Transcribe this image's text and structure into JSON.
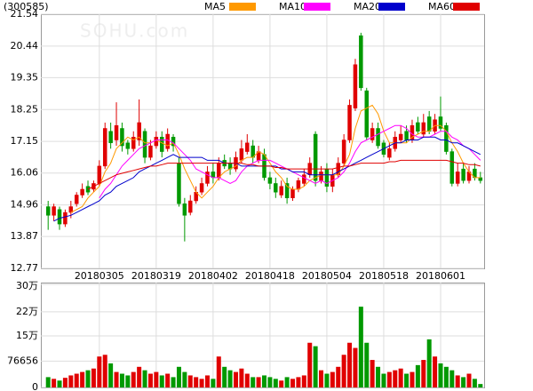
{
  "chart_data": {
    "type": "candlestick",
    "code": "(300585)",
    "watermark": "SOHU.com",
    "categories": [
      null,
      null,
      null,
      null,
      null,
      null,
      null,
      null,
      null,
      "20180305",
      null,
      null,
      null,
      null,
      null,
      null,
      null,
      null,
      null,
      "20180319",
      null,
      null,
      null,
      null,
      null,
      null,
      null,
      null,
      null,
      "20180402",
      null,
      null,
      null,
      null,
      null,
      null,
      null,
      null,
      null,
      "20180418",
      null,
      null,
      null,
      null,
      null,
      null,
      null,
      null,
      null,
      "20180504",
      null,
      null,
      null,
      null,
      null,
      null,
      null,
      null,
      null,
      "20180518",
      null,
      null,
      null,
      null,
      null,
      null,
      null,
      null,
      null,
      "20180601",
      null,
      null,
      null,
      null,
      null,
      null,
      null
    ],
    "open": [
      14.9,
      14.6,
      14.8,
      14.3,
      14.7,
      15.0,
      15.3,
      15.6,
      15.5,
      15.7,
      16.3,
      17.5,
      17.2,
      17.6,
      17.1,
      16.9,
      17.2,
      17.5,
      16.6,
      17.0,
      17.3,
      16.9,
      17.3,
      16.4,
      15.0,
      14.7,
      15.1,
      15.4,
      15.7,
      16.1,
      15.9,
      16.5,
      16.4,
      16.2,
      16.5,
      16.8,
      17.0,
      16.5,
      16.7,
      15.9,
      15.7,
      15.3,
      15.7,
      15.2,
      15.5,
      15.7,
      16.0,
      17.4,
      15.8,
      16.2,
      15.6,
      16.0,
      16.4,
      17.2,
      18.3,
      20.8,
      18.9,
      17.2,
      17.6,
      17.1,
      16.6,
      16.9,
      17.2,
      17.5,
      17.2,
      17.8,
      17.4,
      18.0,
      17.5,
      18.0,
      17.7,
      16.8,
      15.7,
      16.2,
      15.8,
      16.2,
      15.9
    ],
    "high": [
      15.1,
      15.0,
      14.9,
      14.8,
      15.1,
      15.4,
      15.7,
      15.8,
      15.8,
      16.5,
      17.8,
      17.8,
      18.5,
      17.8,
      17.2,
      17.5,
      18.6,
      17.6,
      17.2,
      17.5,
      17.5,
      17.6,
      17.4,
      16.6,
      15.2,
      15.3,
      15.6,
      15.9,
      16.3,
      16.4,
      16.6,
      16.7,
      16.6,
      16.8,
      17.2,
      17.4,
      17.2,
      17.0,
      16.9,
      16.1,
      15.9,
      15.8,
      15.9,
      15.6,
      15.9,
      16.2,
      16.6,
      17.5,
      16.3,
      16.4,
      16.2,
      16.6,
      17.4,
      18.6,
      20.0,
      20.9,
      19.0,
      17.8,
      17.8,
      17.2,
      17.1,
      17.5,
      17.7,
      17.7,
      17.9,
      18.0,
      18.1,
      18.2,
      18.1,
      18.7,
      17.8,
      16.9,
      16.4,
      16.4,
      16.3,
      16.4,
      16.1
    ],
    "low": [
      14.1,
      14.4,
      14.1,
      14.2,
      14.5,
      14.9,
      15.2,
      15.3,
      15.4,
      15.6,
      16.2,
      16.9,
      17.0,
      16.8,
      16.7,
      16.8,
      17.0,
      16.4,
      16.5,
      16.9,
      16.6,
      16.8,
      16.8,
      14.9,
      13.7,
      14.6,
      15.0,
      15.3,
      15.6,
      15.7,
      15.8,
      16.2,
      16.0,
      16.1,
      16.4,
      16.7,
      16.4,
      16.4,
      15.8,
      15.5,
      15.2,
      15.2,
      15.0,
      15.1,
      15.4,
      15.6,
      15.9,
      15.6,
      15.7,
      15.4,
      15.4,
      15.9,
      16.3,
      17.1,
      18.2,
      18.9,
      17.2,
      17.1,
      16.9,
      16.6,
      16.5,
      16.8,
      17.1,
      17.1,
      17.1,
      17.4,
      17.3,
      17.4,
      17.4,
      17.5,
      16.7,
      15.6,
      15.6,
      15.7,
      15.7,
      15.8,
      15.7
    ],
    "close": [
      14.6,
      14.9,
      14.3,
      14.7,
      14.9,
      15.3,
      15.5,
      15.4,
      15.7,
      16.3,
      17.6,
      17.1,
      17.7,
      17.0,
      16.9,
      17.3,
      17.8,
      16.6,
      17.0,
      17.3,
      16.8,
      17.4,
      17.0,
      15.0,
      14.6,
      15.1,
      15.4,
      15.7,
      16.1,
      15.9,
      16.4,
      16.3,
      16.2,
      16.6,
      16.9,
      17.1,
      16.6,
      16.8,
      15.9,
      15.7,
      15.4,
      15.6,
      15.2,
      15.5,
      15.8,
      16.0,
      16.4,
      15.8,
      16.1,
      15.6,
      16.0,
      16.4,
      17.2,
      18.4,
      19.8,
      19.0,
      17.3,
      17.6,
      17.0,
      16.7,
      16.9,
      17.3,
      17.4,
      17.2,
      17.7,
      17.5,
      17.8,
      17.5,
      17.9,
      17.6,
      16.8,
      15.7,
      16.1,
      15.8,
      16.1,
      15.9,
      15.8
    ],
    "up_color": "#e00000",
    "down_color": "#009900",
    "ylim": [
      12.77,
      21.54
    ],
    "yticks": [
      12.77,
      13.87,
      14.96,
      16.06,
      17.15,
      18.25,
      19.35,
      20.44,
      21.54
    ],
    "grid": true,
    "series": [
      {
        "name": "MA5",
        "color": "#ff9900",
        "values": [
          null,
          null,
          null,
          null,
          14.7,
          14.8,
          14.9,
          15.2,
          15.4,
          15.6,
          16.1,
          16.4,
          16.9,
          17.1,
          17.3,
          17.2,
          17.3,
          17.1,
          17.1,
          17.2,
          17.1,
          17.0,
          17.1,
          16.7,
          16.2,
          15.8,
          15.4,
          15.2,
          15.4,
          15.6,
          15.9,
          16.1,
          16.2,
          16.3,
          16.5,
          16.6,
          16.6,
          16.8,
          16.7,
          16.4,
          16.1,
          15.9,
          15.6,
          15.5,
          15.5,
          15.6,
          15.8,
          15.9,
          16.0,
          16.0,
          16.0,
          16.0,
          16.3,
          16.7,
          17.6,
          18.2,
          18.3,
          18.4,
          18.1,
          17.5,
          17.1,
          17.1,
          17.1,
          17.1,
          17.3,
          17.4,
          17.5,
          17.5,
          17.7,
          17.7,
          17.5,
          17.1,
          16.8,
          16.4,
          16.1,
          15.9,
          15.9
        ]
      },
      {
        "name": "MA10",
        "color": "#ff00ff",
        "values": [
          null,
          null,
          null,
          null,
          null,
          null,
          null,
          null,
          null,
          15.2,
          15.5,
          15.7,
          16.0,
          16.3,
          16.5,
          16.7,
          16.9,
          17.0,
          17.1,
          17.2,
          17.2,
          17.2,
          17.1,
          16.9,
          16.7,
          16.5,
          16.2,
          16.1,
          16.0,
          15.9,
          15.9,
          15.8,
          15.7,
          15.8,
          16.1,
          16.3,
          16.4,
          16.5,
          16.5,
          16.5,
          16.4,
          16.3,
          16.2,
          16.1,
          16.0,
          15.9,
          15.8,
          15.7,
          15.8,
          15.7,
          15.8,
          15.9,
          16.1,
          16.4,
          16.8,
          17.1,
          17.2,
          17.3,
          17.4,
          17.5,
          17.6,
          17.7,
          17.7,
          17.6,
          17.4,
          17.3,
          17.3,
          17.3,
          17.4,
          17.5,
          17.5,
          17.3,
          17.2,
          17.0,
          16.9,
          16.7,
          16.5
        ]
      },
      {
        "name": "MA20",
        "color": "#0000cc",
        "values": [
          null,
          14.4,
          14.5,
          14.55,
          14.6,
          14.7,
          14.8,
          14.9,
          15.0,
          15.1,
          15.3,
          15.4,
          15.6,
          15.7,
          15.8,
          15.9,
          16.1,
          16.2,
          16.3,
          16.4,
          16.5,
          16.6,
          16.7,
          16.6,
          16.6,
          16.6,
          16.6,
          16.6,
          16.5,
          16.5,
          16.5,
          16.4,
          16.4,
          16.4,
          16.3,
          16.3,
          16.3,
          16.3,
          16.3,
          16.3,
          16.3,
          16.2,
          16.2,
          16.1,
          16.1,
          16.1,
          16.0,
          16.0,
          16.0,
          16.0,
          16.0,
          16.1,
          16.2,
          16.3,
          16.4,
          16.5,
          16.6,
          16.7,
          16.8,
          16.9,
          17.0,
          17.1,
          17.1,
          17.2,
          17.2,
          17.2,
          17.3,
          17.3,
          17.3,
          17.2,
          17.2,
          17.1,
          17.1,
          17.0,
          16.9,
          16.8,
          16.7
        ]
      },
      {
        "name": "MA60",
        "color": "#e00000",
        "values": [
          null,
          null,
          null,
          null,
          null,
          null,
          null,
          15.5,
          15.6,
          15.7,
          15.8,
          15.9,
          16.0,
          16.05,
          16.1,
          16.15,
          16.2,
          16.25,
          16.3,
          16.3,
          16.35,
          16.4,
          16.4,
          16.4,
          16.4,
          16.4,
          16.4,
          16.4,
          16.4,
          16.4,
          16.4,
          16.4,
          16.4,
          16.4,
          16.4,
          16.35,
          16.35,
          16.3,
          16.3,
          16.3,
          16.25,
          16.25,
          16.2,
          16.2,
          16.2,
          16.2,
          16.2,
          16.2,
          16.2,
          16.2,
          16.2,
          16.25,
          16.3,
          16.3,
          16.35,
          16.4,
          16.4,
          16.4,
          16.4,
          16.4,
          16.45,
          16.45,
          16.5,
          16.5,
          16.5,
          16.5,
          16.5,
          16.5,
          16.5,
          16.5,
          16.5,
          16.45,
          16.4,
          16.4,
          16.35,
          16.35,
          16.3
        ]
      }
    ],
    "volume": {
      "values": [
        30000,
        25000,
        20000,
        28000,
        35000,
        40000,
        45000,
        50000,
        55000,
        90000,
        95000,
        70000,
        45000,
        40000,
        35000,
        45000,
        60000,
        50000,
        40000,
        45000,
        35000,
        40000,
        30000,
        60000,
        45000,
        35000,
        30000,
        25000,
        35000,
        25000,
        90000,
        60000,
        50000,
        45000,
        55000,
        40000,
        30000,
        30000,
        35000,
        30000,
        25000,
        20000,
        30000,
        25000,
        30000,
        35000,
        130000,
        120000,
        50000,
        40000,
        45000,
        60000,
        95000,
        130000,
        115000,
        235000,
        130000,
        80000,
        60000,
        40000,
        45000,
        50000,
        55000,
        40000,
        45000,
        65000,
        80000,
        140000,
        90000,
        70000,
        60000,
        50000,
        35000,
        30000,
        40000,
        25000,
        10000
      ],
      "ylim": [
        0,
        300000
      ],
      "yticks": [
        0,
        76656,
        {
          "value": 150000,
          "label": "15万"
        },
        {
          "value": 220000,
          "label": "22万"
        },
        {
          "value": 300000,
          "label": "30万"
        }
      ]
    }
  }
}
